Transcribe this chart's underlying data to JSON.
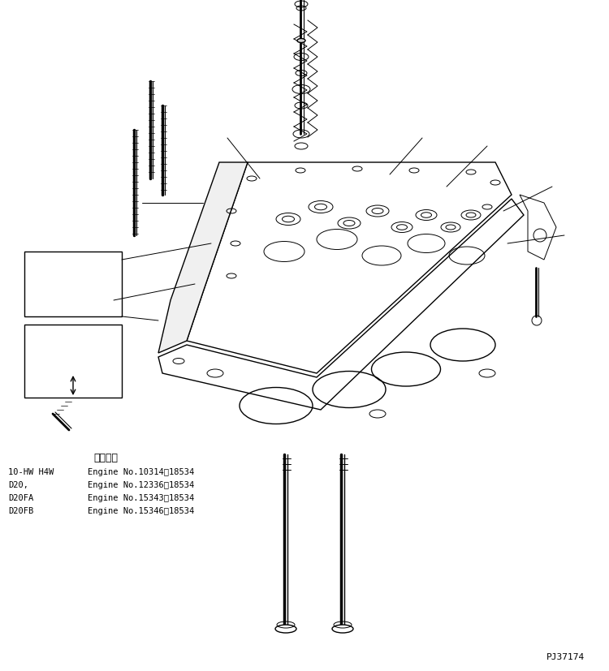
{
  "title": "",
  "background_color": "#ffffff",
  "part_number": "PJ37174",
  "applicable_label": "適用号機",
  "models": [
    {
      "model": "10-HW H4W",
      "engine": "Engine No.10314～18534"
    },
    {
      "model": "D20,",
      "engine": "Engine No.12336～18534"
    },
    {
      "model": "D20FA",
      "engine": "Engine No.15343～18534"
    },
    {
      "model": "D20FB",
      "engine": "Engine No.15346～18534"
    }
  ],
  "text_color": "#000000",
  "line_color": "#000000",
  "font_size_label": 8,
  "font_size_model": 7.5,
  "font_family": "monospace"
}
